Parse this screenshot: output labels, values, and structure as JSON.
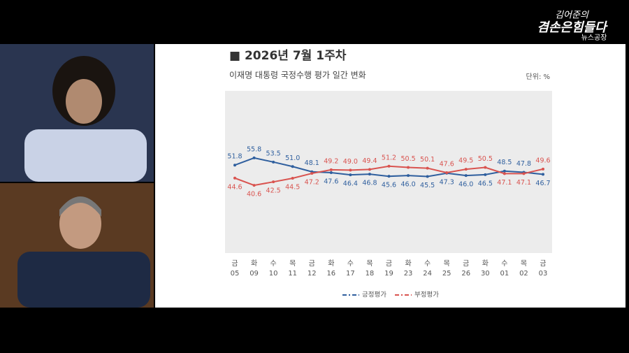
{
  "logo": {
    "line1": "김어준의",
    "line2": "겸손은힘들다",
    "line3": "뉴스공장"
  },
  "chart_data": {
    "type": "line",
    "title": "■ 2026년 7월 1주차",
    "subtitle": "이재명 대통령 국정수행 평가 일간 변화",
    "unit": "단위: %",
    "weekdays": [
      "금",
      "화",
      "수",
      "목",
      "금",
      "화",
      "수",
      "목",
      "금",
      "화",
      "수",
      "목",
      "금",
      "화",
      "수",
      "목",
      "금"
    ],
    "categories": [
      "05",
      "09",
      "10",
      "11",
      "12",
      "16",
      "17",
      "18",
      "19",
      "23",
      "24",
      "25",
      "26",
      "30",
      "01",
      "02",
      "03"
    ],
    "ylim": [
      3,
      93
    ],
    "series": [
      {
        "name": "긍정평가",
        "color": "#2f5f9e",
        "values": [
          51.8,
          55.8,
          53.5,
          51,
          48.1,
          47.6,
          46.4,
          46.8,
          45.6,
          46,
          45.5,
          47.3,
          46,
          46.5,
          48.5,
          47.8,
          46.7
        ],
        "value_labels": [
          "51.8",
          "55.8",
          "53.5",
          "51.0",
          "48.1",
          "47.6",
          "46.4",
          "46.8",
          "45.6",
          "46.0",
          "45.5",
          "47.3",
          "46.0",
          "46.5",
          "48.5",
          "47.8",
          "46.7"
        ]
      },
      {
        "name": "부정평가",
        "color": "#d9534f",
        "values": [
          44.6,
          40.6,
          42.5,
          44.5,
          47.2,
          49.2,
          49,
          49.4,
          51.2,
          50.5,
          50.1,
          47.6,
          49.5,
          50.5,
          47.1,
          47.1,
          49.6
        ],
        "value_labels": [
          "44.6",
          "40.6",
          "42.5",
          "44.5",
          "47.2",
          "49.2",
          "49.0",
          "49.4",
          "51.2",
          "50.5",
          "50.1",
          "47.6",
          "49.5",
          "50.5",
          "47.1",
          "47.1",
          "49.6"
        ]
      }
    ]
  }
}
